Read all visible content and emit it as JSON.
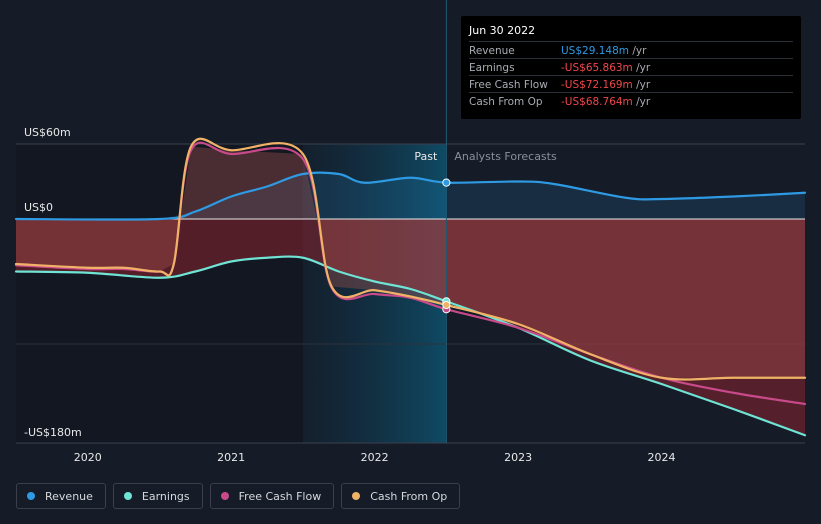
{
  "tooltip": {
    "date": "Jun 30 2022",
    "rows": [
      {
        "label": "Revenue",
        "value": "US$29.148m",
        "unit": "/yr",
        "color": "#2e9ae3"
      },
      {
        "label": "Earnings",
        "value": "-US$65.863m",
        "unit": "/yr",
        "color": "#f0474b"
      },
      {
        "label": "Free Cash Flow",
        "value": "-US$72.169m",
        "unit": "/yr",
        "color": "#f0474b"
      },
      {
        "label": "Cash From Op",
        "value": "-US$68.764m",
        "unit": "/yr",
        "color": "#f0474b"
      }
    ]
  },
  "legend": [
    {
      "label": "Revenue",
      "color": "#2e9ae3"
    },
    {
      "label": "Earnings",
      "color": "#6fe3d4"
    },
    {
      "label": "Free Cash Flow",
      "color": "#c94a8a"
    },
    {
      "label": "Cash From Op",
      "color": "#f0b267"
    }
  ],
  "chart_data": {
    "type": "line",
    "title": "",
    "xlabel": "",
    "ylabel": "",
    "x_range": [
      2019.5,
      2025.0
    ],
    "ylim": [
      -180,
      60
    ],
    "y_labels": [
      {
        "value": 60,
        "text": "US$60m"
      },
      {
        "value": 0,
        "text": "US$0"
      },
      {
        "value": -180,
        "text": "-US$180m"
      }
    ],
    "x_ticks": [
      2020,
      2021,
      2022,
      2023,
      2024
    ],
    "x_tick_labels": [
      "2020",
      "2021",
      "2022",
      "2023",
      "2024"
    ],
    "past_label": "Past",
    "forecast_label": "Analysts Forecasts",
    "forecast_start": 2021.5,
    "current": 2022.5,
    "series": [
      {
        "name": "Revenue",
        "color": "#2e9ae3",
        "points": [
          [
            2019.5,
            0
          ],
          [
            2020.5,
            0
          ],
          [
            2020.75,
            6
          ],
          [
            2021.0,
            18
          ],
          [
            2021.25,
            26
          ],
          [
            2021.5,
            36
          ],
          [
            2021.75,
            36
          ],
          [
            2021.93,
            29
          ],
          [
            2022.25,
            33
          ],
          [
            2022.5,
            29.1
          ],
          [
            2023.0,
            30
          ],
          [
            2023.25,
            28
          ],
          [
            2023.75,
            17
          ],
          [
            2024.0,
            16
          ],
          [
            2024.5,
            18
          ],
          [
            2025.0,
            21
          ]
        ]
      },
      {
        "name": "Earnings",
        "color": "#6fe3d4",
        "points": [
          [
            2019.5,
            -42
          ],
          [
            2020.0,
            -43
          ],
          [
            2020.5,
            -47
          ],
          [
            2020.75,
            -42
          ],
          [
            2021.0,
            -34
          ],
          [
            2021.25,
            -31
          ],
          [
            2021.5,
            -31
          ],
          [
            2021.75,
            -42
          ],
          [
            2022.0,
            -50
          ],
          [
            2022.25,
            -56
          ],
          [
            2022.5,
            -65.9
          ],
          [
            2023.0,
            -87
          ],
          [
            2023.5,
            -113
          ],
          [
            2024.0,
            -132
          ],
          [
            2024.5,
            -152
          ],
          [
            2025.0,
            -173
          ]
        ]
      },
      {
        "name": "Free Cash Flow",
        "color": "#c94a8a",
        "points": [
          [
            2019.5,
            -37
          ],
          [
            2020.0,
            -40
          ],
          [
            2020.25,
            -40
          ],
          [
            2020.5,
            -42
          ],
          [
            2020.6,
            -36
          ],
          [
            2020.72,
            55
          ],
          [
            2021.0,
            52
          ],
          [
            2021.5,
            48
          ],
          [
            2021.7,
            -55
          ],
          [
            2022.0,
            -60
          ],
          [
            2022.25,
            -63
          ],
          [
            2022.5,
            -72.2
          ],
          [
            2023.0,
            -87
          ],
          [
            2023.5,
            -108
          ],
          [
            2024.0,
            -127
          ],
          [
            2024.5,
            -139
          ],
          [
            2025.0,
            -148
          ]
        ]
      },
      {
        "name": "Cash From Op",
        "color": "#f0b267",
        "points": [
          [
            2019.5,
            -36
          ],
          [
            2020.0,
            -39
          ],
          [
            2020.25,
            -39
          ],
          [
            2020.5,
            -42
          ],
          [
            2020.6,
            -36
          ],
          [
            2020.72,
            58
          ],
          [
            2021.0,
            55
          ],
          [
            2021.5,
            52
          ],
          [
            2021.7,
            -54
          ],
          [
            2022.0,
            -57
          ],
          [
            2022.25,
            -62
          ],
          [
            2022.5,
            -68.8
          ],
          [
            2023.0,
            -84
          ],
          [
            2023.5,
            -108
          ],
          [
            2024.0,
            -127
          ],
          [
            2024.5,
            -127
          ],
          [
            2025.0,
            -127
          ]
        ]
      }
    ]
  }
}
